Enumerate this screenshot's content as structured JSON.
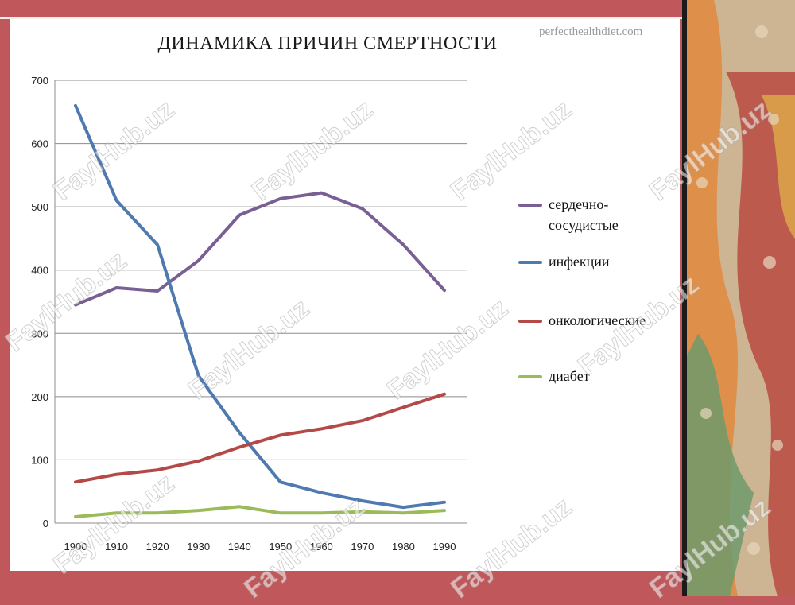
{
  "watermark": "FaylHub.uz",
  "source_credit": "perfecthealthdiet.com",
  "colors": {
    "frame": "#c0575a",
    "grid": "#8c8c8c",
    "cardio": "#7a5f94",
    "infections": "#4f7ab0",
    "oncology": "#b34a47",
    "diabetes": "#9bbb59"
  },
  "chart_data": {
    "type": "line",
    "title": "ДИНАМИКА ПРИЧИН СМЕРТНОСТИ",
    "xlabel": "",
    "ylabel": "",
    "x": [
      "1900",
      "1910",
      "1920",
      "1930",
      "1940",
      "1950",
      "1960",
      "1970",
      "1980",
      "1990"
    ],
    "ylim": [
      0,
      700
    ],
    "yticks": [
      "0",
      "100",
      "200",
      "300",
      "400",
      "500",
      "600",
      "700"
    ],
    "grid": true,
    "legend_position": "right",
    "series": [
      {
        "name": "сердечно-сосудистые",
        "color": "#7a5f94",
        "values": [
          345,
          372,
          367,
          415,
          487,
          513,
          522,
          497,
          440,
          368
        ]
      },
      {
        "name": "инфекции",
        "color": "#4f7ab0",
        "values": [
          660,
          510,
          440,
          233,
          143,
          65,
          48,
          35,
          25,
          33
        ]
      },
      {
        "name": "онкологические",
        "color": "#b34a47",
        "values": [
          65,
          77,
          84,
          98,
          120,
          139,
          149,
          162,
          183,
          204
        ]
      },
      {
        "name": "диабет",
        "color": "#9bbb59",
        "values": [
          10,
          16,
          16,
          20,
          26,
          16,
          16,
          18,
          16,
          20
        ]
      }
    ]
  }
}
